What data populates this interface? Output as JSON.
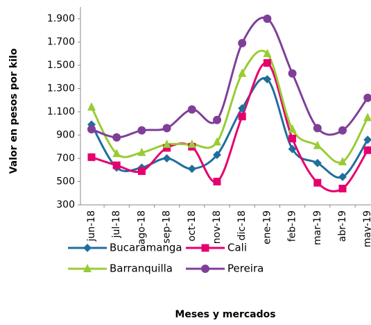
{
  "chart_data": {
    "type": "line",
    "y_label": "Valor en pesos por kilo",
    "x_label": "Meses  y mercados",
    "categories": [
      "jun-18",
      "jul-18",
      "ago-18",
      "sep-18",
      "oct-18",
      "nov-18",
      "dic-18",
      "ene-19",
      "feb-19",
      "mar-19",
      "abr-19",
      "may-19"
    ],
    "series": [
      {
        "name": "Bucaramanga",
        "color": "#1f6e9c",
        "marker": "diamond",
        "values": [
          990,
          620,
          620,
          700,
          610,
          730,
          1130,
          1380,
          780,
          660,
          540,
          860
        ]
      },
      {
        "name": "Cali",
        "color": "#e6006e",
        "marker": "square",
        "values": [
          710,
          640,
          590,
          790,
          800,
          500,
          1060,
          1520,
          870,
          490,
          440,
          770
        ]
      },
      {
        "name": "Barranquilla",
        "color": "#99cc33",
        "marker": "triangle",
        "values": [
          1140,
          740,
          750,
          820,
          820,
          840,
          1430,
          1600,
          950,
          810,
          670,
          1050
        ]
      },
      {
        "name": "Pereira",
        "color": "#7f3f98",
        "marker": "circle",
        "values": [
          950,
          880,
          940,
          960,
          1120,
          1030,
          1690,
          1900,
          1430,
          960,
          940,
          1220
        ]
      }
    ],
    "ylim": [
      300,
      1900
    ],
    "yticks": [
      300,
      500,
      700,
      900,
      {
        "value": 1100,
        "label": "1.100"
      },
      {
        "value": 1300,
        "label": "1.300"
      },
      {
        "value": 1500,
        "label": "1.500"
      },
      {
        "value": 1700,
        "label": "1.700"
      },
      {
        "value": 1900,
        "label": "1.900"
      }
    ],
    "smooth": true
  }
}
